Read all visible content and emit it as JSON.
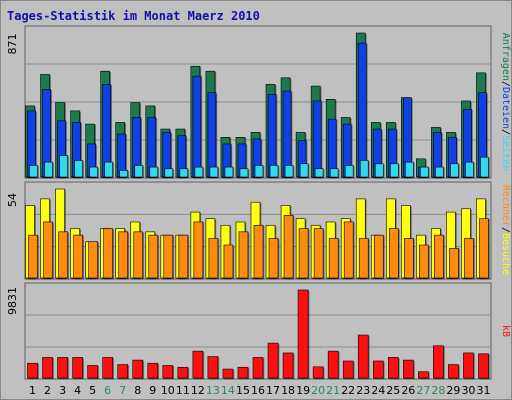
{
  "title": "Tages-Statistik im Monat Maerz 2010",
  "colors": {
    "background": "#c0c0c0",
    "panel_border": "#606060",
    "gridline": "#8c8c8c",
    "title": "#1010aa",
    "anfragen": "#1c7a4c",
    "dateien": "#1040e6",
    "seiten": "#30d8f0",
    "besuche": "#ffff10",
    "rechner": "#ff8c10",
    "kb": "#ff1010",
    "day_normal": "#000000",
    "day_weekend": "#2a8a5a"
  },
  "chart_data": [
    {
      "type": "bar",
      "panel": "top",
      "y_max_label": "871",
      "ylim": [
        0,
        871
      ],
      "legend": [
        {
          "label": "Anfragen",
          "color": "#1c7a4c"
        },
        {
          "label": "Dateien",
          "color": "#1040e6"
        },
        {
          "label": "Seiten",
          "color": "#30d8f0"
        }
      ],
      "legend_separator": "/",
      "series": [
        {
          "name": "Anfragen",
          "values": [
            430,
            620,
            450,
            400,
            320,
            640,
            330,
            450,
            430,
            290,
            290,
            670,
            640,
            240,
            240,
            270,
            560,
            600,
            270,
            550,
            470,
            360,
            871,
            330,
            330,
            480,
            110,
            300,
            270,
            460,
            630
          ]
        },
        {
          "name": "Dateien",
          "values": [
            400,
            530,
            340,
            330,
            200,
            560,
            260,
            360,
            360,
            270,
            250,
            610,
            510,
            200,
            200,
            230,
            500,
            520,
            220,
            460,
            350,
            320,
            810,
            290,
            290,
            480,
            60,
            270,
            240,
            410,
            510
          ]
        },
        {
          "name": "Seiten",
          "values": [
            70,
            90,
            130,
            100,
            60,
            90,
            40,
            70,
            60,
            50,
            50,
            60,
            60,
            60,
            50,
            70,
            70,
            70,
            80,
            50,
            50,
            70,
            100,
            80,
            80,
            90,
            60,
            60,
            80,
            90,
            120
          ]
        }
      ]
    },
    {
      "type": "bar",
      "panel": "middle",
      "y_max_label": "54",
      "ylim": [
        0,
        54
      ],
      "legend": [
        {
          "label": "Rechner",
          "color": "#ff8c10"
        },
        {
          "label": "Besuche",
          "color": "#ffff10"
        }
      ],
      "legend_separator": "/",
      "series": [
        {
          "name": "Besuche",
          "values": [
            44,
            48,
            54,
            30,
            22,
            30,
            30,
            34,
            28,
            26,
            26,
            40,
            36,
            32,
            34,
            46,
            32,
            44,
            36,
            32,
            34,
            36,
            48,
            26,
            48,
            44,
            26,
            30,
            40,
            42,
            48
          ]
        },
        {
          "name": "Rechner",
          "values": [
            26,
            34,
            28,
            26,
            22,
            30,
            28,
            28,
            26,
            26,
            26,
            34,
            24,
            20,
            28,
            32,
            24,
            38,
            30,
            30,
            24,
            34,
            24,
            26,
            30,
            24,
            20,
            26,
            18,
            24,
            36
          ]
        }
      ]
    },
    {
      "type": "bar",
      "panel": "bottom",
      "y_max_label": "9831",
      "ylim": [
        0,
        9831
      ],
      "legend": [
        {
          "label": "kB",
          "color": "#ff1010"
        }
      ],
      "series": [
        {
          "name": "kB",
          "values": [
            1650,
            2300,
            2300,
            2300,
            1400,
            2300,
            1500,
            2000,
            1650,
            1400,
            1200,
            3000,
            2400,
            1000,
            1200,
            2300,
            3900,
            2800,
            9831,
            1250,
            3000,
            1900,
            4800,
            1900,
            2300,
            2000,
            700,
            3600,
            1500,
            2800,
            2700
          ]
        }
      ]
    }
  ],
  "x_axis": {
    "labels": [
      "1",
      "2",
      "3",
      "4",
      "5",
      "6",
      "7",
      "8",
      "9",
      "10",
      "11",
      "12",
      "13",
      "14",
      "15",
      "16",
      "17",
      "18",
      "19",
      "20",
      "21",
      "22",
      "23",
      "24",
      "25",
      "26",
      "27",
      "28",
      "29",
      "30",
      "31"
    ],
    "weekend_days": [
      "6",
      "7",
      "13",
      "14",
      "20",
      "21",
      "27",
      "28"
    ]
  }
}
